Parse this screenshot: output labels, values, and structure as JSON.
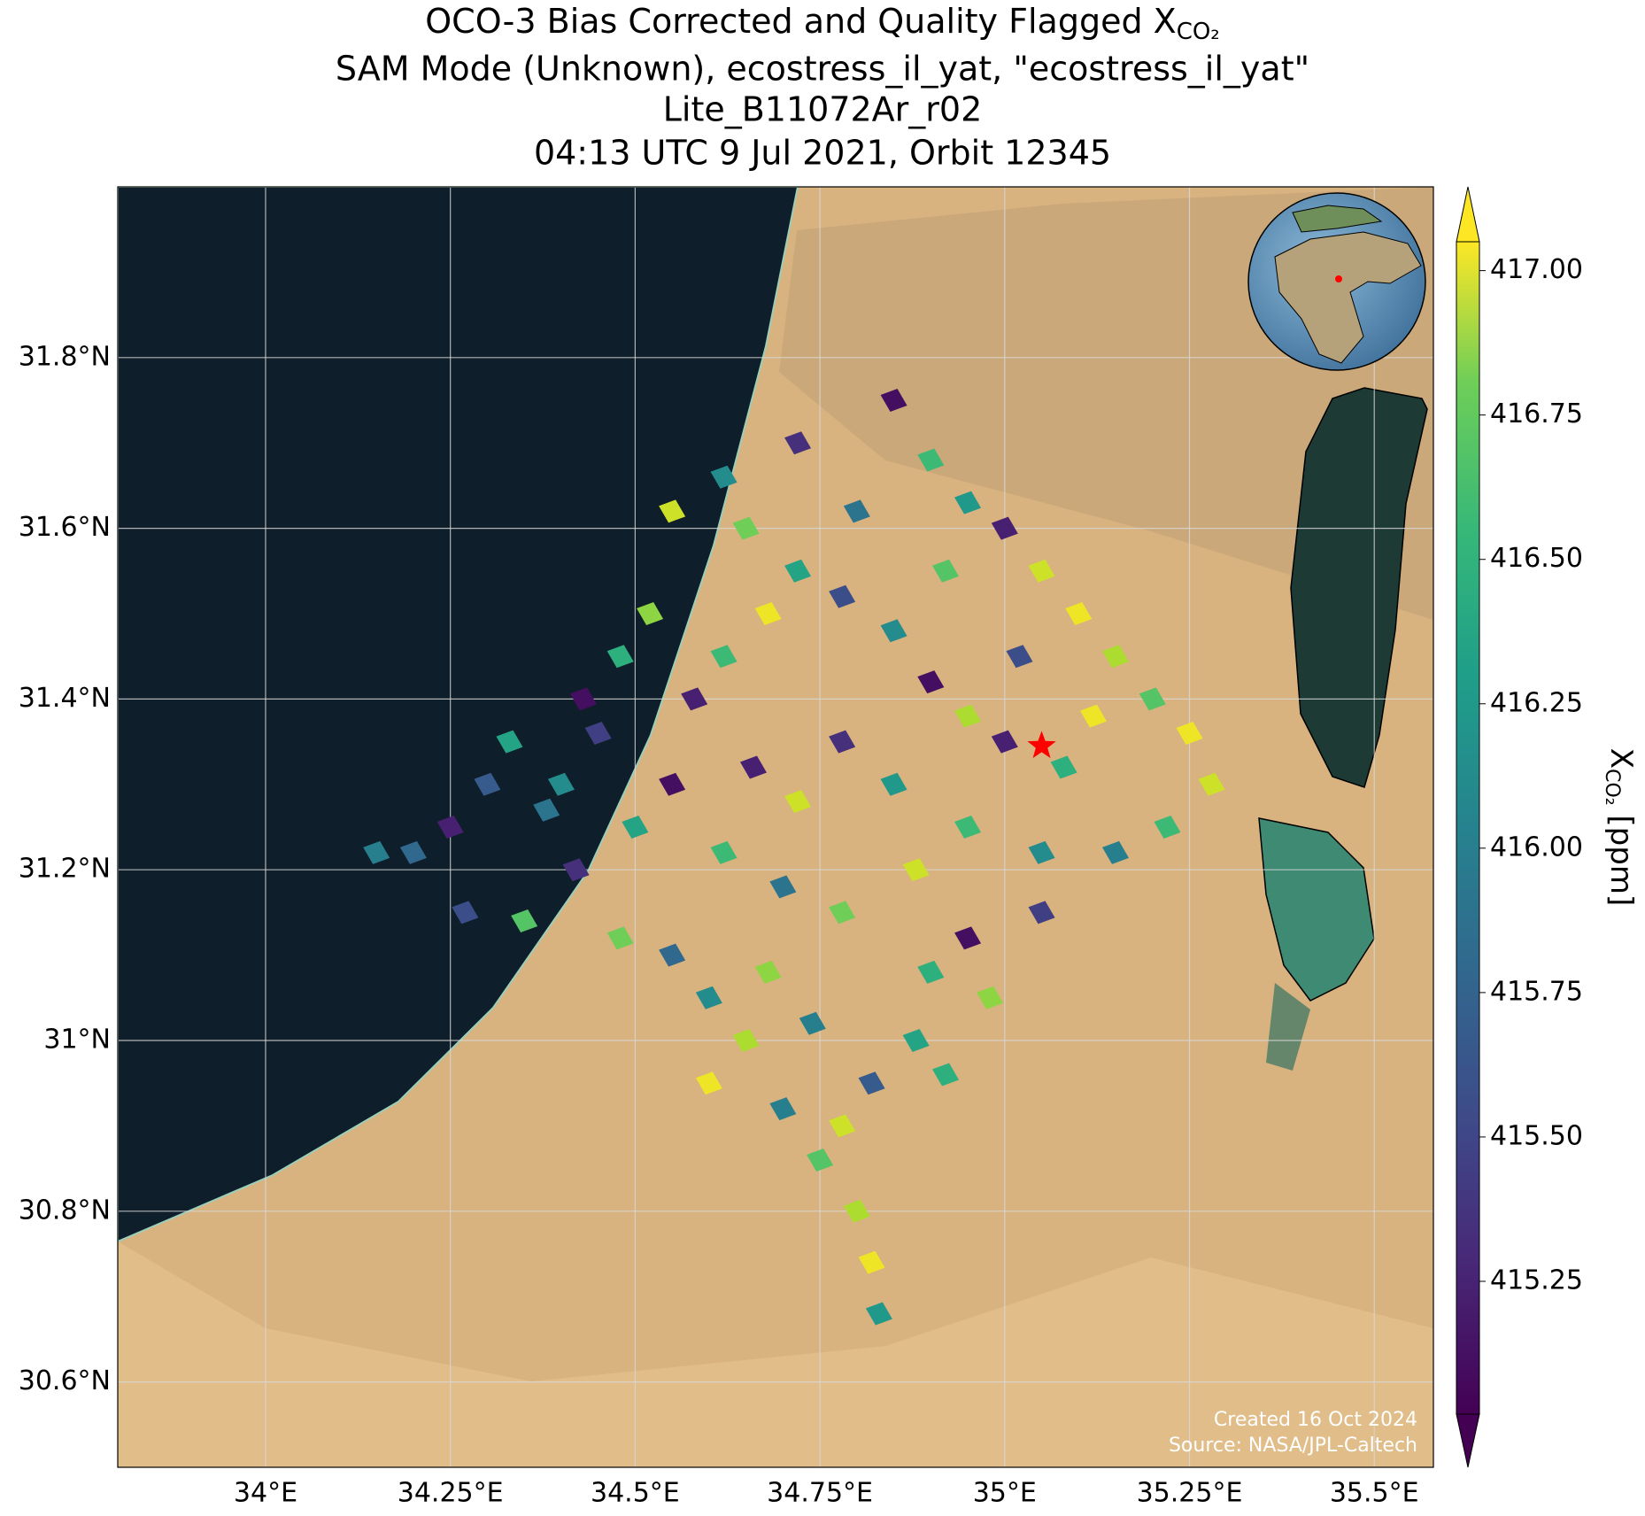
{
  "chart_data": {
    "type": "map",
    "title": [
      "OCO-3 Bias Corrected and Quality Flagged X",
      "SAM Mode (Unknown), ecostress_il_yat, \"ecostress_il_yat\"",
      "Lite_B11072Ar_r02",
      "04:13 UTC 9 Jul 2021, Orbit 12345"
    ],
    "title_subscript": "CO₂",
    "colorbar_label": {
      "symbol": "X",
      "subscript": "CO₂",
      "unit": " [ppm]"
    },
    "credits": [
      "Created 16 Oct 2024",
      "Source: NASA/JPL-Caltech"
    ],
    "xlim": [
      33.8,
      35.58
    ],
    "ylim": [
      30.5,
      32.0
    ],
    "xticks": [
      {
        "value": 34,
        "label": "34°E"
      },
      {
        "value": 34.25,
        "label": "34.25°E"
      },
      {
        "value": 34.5,
        "label": "34.5°E"
      },
      {
        "value": 34.75,
        "label": "34.75°E"
      },
      {
        "value": 35,
        "label": "35°E"
      },
      {
        "value": 35.25,
        "label": "35.25°E"
      },
      {
        "value": 35.5,
        "label": "35.5°E"
      }
    ],
    "yticks": [
      {
        "value": 30.6,
        "label": "30.6°N"
      },
      {
        "value": 30.8,
        "label": "30.8°N"
      },
      {
        "value": 31,
        "label": "31°N"
      },
      {
        "value": 31.2,
        "label": "31.2°N"
      },
      {
        "value": 31.4,
        "label": "31.4°N"
      },
      {
        "value": 31.6,
        "label": "31.6°N"
      },
      {
        "value": 31.8,
        "label": "31.8°N"
      }
    ],
    "grid": true,
    "colormap": "viridis",
    "clim": [
      415.02,
      417.05
    ],
    "cticks": [
      {
        "value": 415.25,
        "label": "415.25"
      },
      {
        "value": 415.5,
        "label": "415.50"
      },
      {
        "value": 415.75,
        "label": "415.75"
      },
      {
        "value": 416,
        "label": "416.00"
      },
      {
        "value": 416.25,
        "label": "416.25"
      },
      {
        "value": 416.5,
        "label": "416.50"
      },
      {
        "value": 416.75,
        "label": "416.75"
      },
      {
        "value": 417,
        "label": "417.00"
      }
    ],
    "target": {
      "lon": 35.05,
      "lat": 31.345,
      "color": "#ff0000"
    },
    "x": [
      34.85,
      34.9,
      34.72,
      34.62,
      34.55,
      34.65,
      34.8,
      34.95,
      35.0,
      35.05,
      35.1,
      35.15,
      35.2,
      35.25,
      35.28,
      35.22,
      35.15,
      35.05,
      34.95,
      34.9,
      34.98,
      34.88,
      34.82,
      34.78,
      34.75,
      34.8,
      34.82,
      34.83,
      34.7,
      34.65,
      34.6,
      34.55,
      34.48,
      34.42,
      34.38,
      34.33,
      34.3,
      34.25,
      34.2,
      34.15,
      34.27,
      34.35,
      34.43,
      34.48,
      34.52,
      34.45,
      34.58,
      34.62,
      34.68,
      34.72,
      34.78,
      34.85,
      34.9,
      34.95,
      35.0,
      35.08,
      35.12,
      35.02,
      34.92,
      34.85,
      34.78,
      34.72,
      34.66,
      34.62,
      34.7,
      34.78,
      34.88,
      34.95,
      35.05,
      34.68,
      34.74,
      34.92,
      34.6,
      34.55,
      34.5,
      34.4
    ],
    "y": [
      31.75,
      31.68,
      31.7,
      31.66,
      31.62,
      31.6,
      31.62,
      31.63,
      31.6,
      31.55,
      31.5,
      31.45,
      31.4,
      31.36,
      31.3,
      31.25,
      31.22,
      31.15,
      31.12,
      31.08,
      31.05,
      31.0,
      30.95,
      30.9,
      30.86,
      30.8,
      30.74,
      30.68,
      30.92,
      31.0,
      31.05,
      31.1,
      31.12,
      31.2,
      31.27,
      31.35,
      31.3,
      31.25,
      31.22,
      31.22,
      31.15,
      31.14,
      31.4,
      31.45,
      31.5,
      31.36,
      31.4,
      31.45,
      31.5,
      31.55,
      31.52,
      31.48,
      31.42,
      31.38,
      31.35,
      31.32,
      31.38,
      31.45,
      31.55,
      31.3,
      31.35,
      31.28,
      31.32,
      31.22,
      31.18,
      31.15,
      31.2,
      31.25,
      31.22,
      31.08,
      31.02,
      30.96,
      30.95,
      31.3,
      31.25,
      31.3
    ],
    "values": [
      415.1,
      416.4,
      415.3,
      416.0,
      416.9,
      416.6,
      415.8,
      416.1,
      415.2,
      416.9,
      417.0,
      416.8,
      416.5,
      417.0,
      416.9,
      416.4,
      415.9,
      415.4,
      415.1,
      416.3,
      416.7,
      416.2,
      415.6,
      416.9,
      416.5,
      416.8,
      417.0,
      416.1,
      415.9,
      416.8,
      416.0,
      415.7,
      416.6,
      415.3,
      415.8,
      416.2,
      415.6,
      415.2,
      415.7,
      415.9,
      415.5,
      416.5,
      415.1,
      416.3,
      416.7,
      415.4,
      415.2,
      416.4,
      417.0,
      416.2,
      415.5,
      416.0,
      415.1,
      416.8,
      415.2,
      416.3,
      417.0,
      415.5,
      416.5,
      416.1,
      415.3,
      416.9,
      415.2,
      416.4,
      415.8,
      416.6,
      416.9,
      416.4,
      416.0,
      416.7,
      415.9,
      416.3,
      417.0,
      415.1,
      416.2,
      416.0
    ]
  }
}
